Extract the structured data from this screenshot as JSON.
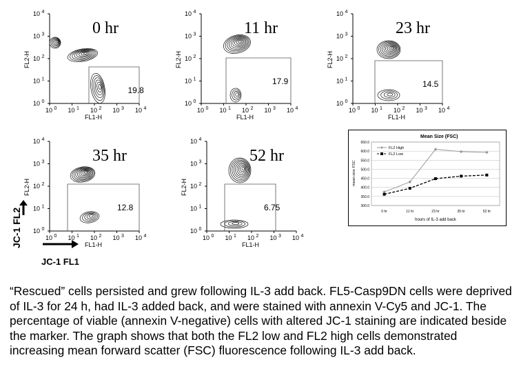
{
  "panels": [
    {
      "time": "0 hr",
      "percent": "19.8"
    },
    {
      "time": "11 hr",
      "percent": "17.9"
    },
    {
      "time": "23 hr",
      "percent": "14.5"
    },
    {
      "time": "35 hr",
      "percent": "12.8"
    },
    {
      "time": "52 hr",
      "percent": "6.75"
    }
  ],
  "flow_axes": {
    "xlabel": "FL1-H",
    "ylabel": "FL2-H",
    "tick_base": "10",
    "tick_exponents": [
      "0",
      "1",
      "2",
      "3",
      "4"
    ]
  },
  "jc1_labels": {
    "y": "JC-1 FL2",
    "x": "JC-1 FL1"
  },
  "chart_data": {
    "type": "line",
    "title": "Mean Size (FSC)",
    "xlabel": "hours of IL-3 add back",
    "ylabel": "mean size FSC",
    "categories": [
      "0 hr",
      "11 hr",
      "23 hr",
      "35 hr",
      "52 hr"
    ],
    "yticks": [
      "300.0",
      "350.0",
      "400.0",
      "450.0",
      "500.0",
      "550.0",
      "600.0",
      "650.0"
    ],
    "ylim": [
      300,
      650
    ],
    "grid": true,
    "legend": "top-left",
    "series": [
      {
        "name": "FL2 High",
        "values": [
          375,
          430,
          610,
          597,
          593
        ],
        "color": "#999999",
        "style": "solid",
        "marker": "diamond"
      },
      {
        "name": "FL2 Low",
        "values": [
          362,
          395,
          448,
          462,
          468
        ],
        "color": "#000000",
        "style": "dashed",
        "marker": "square"
      }
    ]
  },
  "caption": "“Rescued” cells persisted and grew following IL-3 add back. FL5-Casp9DN cells were deprived of IL-3 for 24 h, had IL-3 added back, and were stained with annexin V-Cy5 and JC-1. The percentage of viable (annexin V-negative) cells with altered JC-1 staining are indicated beside the marker. The graph shows that both the FL2 low and FL2 high cells demonstrated increasing mean forward scatter (FSC) fluorescence following IL-3 add back."
}
